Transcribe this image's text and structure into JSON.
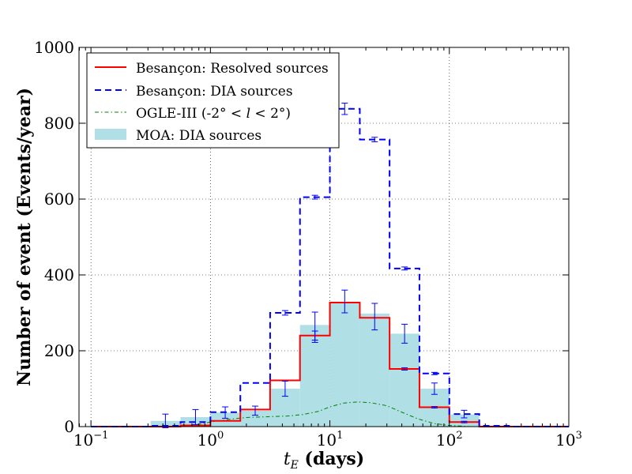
{
  "chart_data": {
    "type": "histogram",
    "title": "",
    "xlabel_main": "t",
    "xlabel_sub": "E",
    "xlabel_unit": " (days)",
    "ylabel": "Number of event (Events/year)",
    "xscale": "log",
    "xlim": [
      0.0794,
      1000
    ],
    "ylim": [
      0,
      1000
    ],
    "grid": true,
    "legend_position": "top-left",
    "x_ticks": [
      {
        "value": 0.1,
        "base": "10",
        "exp": "−1"
      },
      {
        "value": 1,
        "base": "10",
        "exp": "0"
      },
      {
        "value": 10,
        "base": "10",
        "exp": "1"
      },
      {
        "value": 100,
        "base": "10",
        "exp": "2"
      },
      {
        "value": 1000,
        "base": "10",
        "exp": "3"
      }
    ],
    "y_ticks": [
      {
        "value": 0,
        "label": "0"
      },
      {
        "value": 200,
        "label": "200"
      },
      {
        "value": 400,
        "label": "400"
      },
      {
        "value": 600,
        "label": "600"
      },
      {
        "value": 800,
        "label": "800"
      },
      {
        "value": 1000,
        "label": "1000"
      }
    ],
    "bin_edges": [
      0.1,
      0.178,
      0.316,
      0.562,
      1.0,
      1.78,
      3.16,
      5.62,
      10.0,
      17.8,
      31.6,
      56.2,
      100,
      178,
      316,
      562,
      1000
    ],
    "series": [
      {
        "name": "MOA: DIA sources",
        "kind": "filled_step",
        "color": "#b0dfe5",
        "values": [
          0,
          0,
          15,
          25,
          37,
          42,
          100,
          268,
          325,
          298,
          245,
          100,
          32,
          0,
          0,
          0
        ]
      },
      {
        "name": "Besançon: Resolved sources",
        "kind": "step",
        "color": "#ff0000",
        "values": [
          0,
          0,
          0,
          3,
          15,
          45,
          122,
          240,
          327,
          287,
          152,
          51,
          12,
          0,
          0,
          0
        ]
      },
      {
        "name": "Besançon: DIA sources",
        "kind": "dashed_step",
        "color": "#0000ff",
        "values": [
          0,
          0,
          2,
          12,
          38,
          115,
          300,
          605,
          838,
          757,
          417,
          140,
          33,
          2,
          0,
          0
        ]
      },
      {
        "name": "OGLE-III (-2° < l < 2°)",
        "kind": "dashdot_curve",
        "color": "#008000",
        "x": [
          0.3,
          0.5,
          0.75,
          1.0,
          1.5,
          2.0,
          3.0,
          4.5,
          6.0,
          8.0,
          10.0,
          13.0,
          17.0,
          22.0,
          30.0,
          40.0,
          55.0,
          75.0,
          100.0,
          150.0
        ],
        "y": [
          0,
          1,
          5,
          12,
          20,
          24,
          26,
          28,
          32,
          40,
          52,
          62,
          65,
          63,
          55,
          38,
          20,
          8,
          3,
          0
        ]
      }
    ],
    "error_bars": {
      "color": "#0000ff",
      "points": [
        {
          "x": 0.42,
          "y": 15,
          "err": 18
        },
        {
          "x": 0.75,
          "y": 25,
          "err": 20
        },
        {
          "x": 1.33,
          "y": 37,
          "err": 15
        },
        {
          "x": 2.37,
          "y": 42,
          "err": 12
        },
        {
          "x": 4.22,
          "y": 100,
          "err": 20
        },
        {
          "x": 4.22,
          "y": 300,
          "err": 6
        },
        {
          "x": 7.5,
          "y": 605,
          "err": 5
        },
        {
          "x": 7.5,
          "y": 262,
          "err": 40
        },
        {
          "x": 7.5,
          "y": 240,
          "err": 12
        },
        {
          "x": 13.3,
          "y": 838,
          "err": 15
        },
        {
          "x": 13.3,
          "y": 330,
          "err": 30
        },
        {
          "x": 23.7,
          "y": 757,
          "err": 6
        },
        {
          "x": 23.7,
          "y": 290,
          "err": 35
        },
        {
          "x": 42.2,
          "y": 417,
          "err": 4
        },
        {
          "x": 42.2,
          "y": 245,
          "err": 25
        },
        {
          "x": 42.2,
          "y": 152,
          "err": 3
        },
        {
          "x": 75,
          "y": 140,
          "err": 3
        },
        {
          "x": 75,
          "y": 100,
          "err": 15
        },
        {
          "x": 75,
          "y": 51,
          "err": 2
        },
        {
          "x": 133,
          "y": 33,
          "err": 10
        },
        {
          "x": 133,
          "y": 12,
          "err": 2
        }
      ]
    },
    "legend": [
      {
        "label": "Besançon: Resolved sources",
        "style": "solid",
        "color": "#ff0000"
      },
      {
        "label": "Besançon: DIA sources",
        "style": "dashed",
        "color": "#0000ff"
      },
      {
        "label_prefix": "OGLE-III (-2",
        "deg": "°",
        "lt1": " < ",
        "l": "l",
        "lt2": " < 2",
        "deg2": "°",
        "label_suffix": ")",
        "style": "dashdot",
        "color": "#008000"
      },
      {
        "label": "MOA: DIA sources",
        "style": "patch",
        "color": "#b0dfe5"
      }
    ]
  }
}
